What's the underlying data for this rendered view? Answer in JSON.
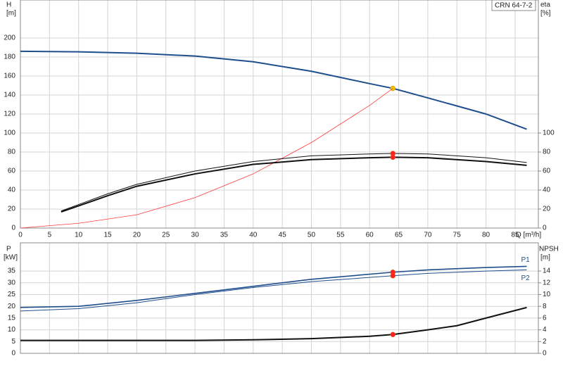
{
  "chart_data": [
    {
      "type": "line",
      "label": "CRN 64-7-2",
      "ylabel": "H",
      "yunit": "[m]",
      "y2label": "eta",
      "y2unit": "[%]",
      "xlabel": "Q [m³/h]",
      "xlim": [
        0,
        89
      ],
      "xticks": [
        0,
        5,
        10,
        15,
        20,
        25,
        30,
        35,
        40,
        45,
        50,
        55,
        60,
        65,
        70,
        75,
        80,
        85
      ],
      "ylim": [
        0,
        240
      ],
      "yticks": [
        0,
        20,
        40,
        60,
        80,
        100,
        120,
        140,
        160,
        180,
        200
      ],
      "y2lim": [
        0,
        240
      ],
      "y2ticks": [
        0,
        20,
        40,
        60,
        80,
        100
      ],
      "grid": true,
      "series": [
        {
          "color": "#1f4e8c",
          "width": 2,
          "x": [
            0,
            10,
            20,
            30,
            40,
            50,
            60,
            64,
            70,
            80,
            87
          ],
          "values": [
            186,
            185.5,
            184,
            181,
            175,
            165,
            152,
            147,
            137,
            120,
            104
          ],
          "points": [
            {
              "x": 64,
              "y": 147,
              "color": "#f5c400"
            }
          ]
        },
        {
          "color": "#ff3b3b",
          "width": 0.8,
          "x": [
            0,
            10,
            20,
            30,
            40,
            50,
            60,
            64
          ],
          "values": [
            0,
            5,
            14,
            32,
            57,
            90,
            129,
            147
          ]
        },
        {
          "color": "#111111",
          "width": 1,
          "axis": "y2",
          "x": [
            7,
            15,
            20,
            30,
            40,
            50,
            60,
            64,
            70,
            80,
            87
          ],
          "values": [
            18,
            36,
            46,
            60,
            70,
            76,
            78,
            78.5,
            78,
            74,
            69
          ],
          "points": [
            {
              "x": 64,
              "y": 78.5,
              "color": "#ff2020"
            }
          ]
        },
        {
          "color": "#111111",
          "width": 2,
          "axis": "y2",
          "x": [
            7,
            15,
            20,
            30,
            40,
            50,
            60,
            64,
            70,
            80,
            87
          ],
          "values": [
            17,
            34,
            44,
            57,
            67,
            72,
            74,
            74.5,
            74,
            70,
            66
          ],
          "points": [
            {
              "x": 64,
              "y": 74.5,
              "color": "#ff2020"
            }
          ]
        }
      ]
    },
    {
      "type": "line",
      "ylabel": "P",
      "yunit": "[kW]",
      "y2label": "NPSH",
      "y2unit": "[m]",
      "xlim": [
        0,
        89
      ],
      "ylim": [
        0,
        47
      ],
      "yticks": [
        0,
        5,
        10,
        15,
        20,
        25,
        30,
        35
      ],
      "y2lim": [
        0,
        18.8
      ],
      "y2ticks": [
        0,
        2,
        4,
        6,
        8,
        10,
        12,
        14
      ],
      "grid": true,
      "series": [
        {
          "name": "P1",
          "color": "#1f4e8c",
          "width": 1.6,
          "x": [
            0,
            10,
            20,
            30,
            40,
            50,
            64,
            70,
            80,
            87
          ],
          "values": [
            19.5,
            20,
            22.5,
            25.5,
            28.5,
            31.5,
            34.5,
            35.5,
            36.5,
            37
          ],
          "points": [
            {
              "x": 64,
              "y": 34.5,
              "color": "#ff2020"
            }
          ]
        },
        {
          "name": "P2",
          "color": "#1f4e8c",
          "width": 1,
          "x": [
            0,
            10,
            20,
            30,
            40,
            50,
            64,
            70,
            80,
            87
          ],
          "values": [
            18,
            19,
            21.5,
            25,
            28,
            30.5,
            33,
            34,
            35,
            35.5
          ],
          "points": [
            {
              "x": 64,
              "y": 33,
              "color": "#ff2020"
            }
          ]
        },
        {
          "color": "#111111",
          "width": 2,
          "axis": "y2",
          "x": [
            0,
            30,
            40,
            50,
            60,
            64,
            70,
            75,
            80,
            87
          ],
          "values": [
            2.2,
            2.2,
            2.3,
            2.5,
            2.9,
            3.2,
            4,
            4.7,
            6,
            7.8
          ],
          "points": [
            {
              "x": 64,
              "y": 3.2,
              "color": "#ff2020"
            }
          ]
        }
      ]
    }
  ]
}
